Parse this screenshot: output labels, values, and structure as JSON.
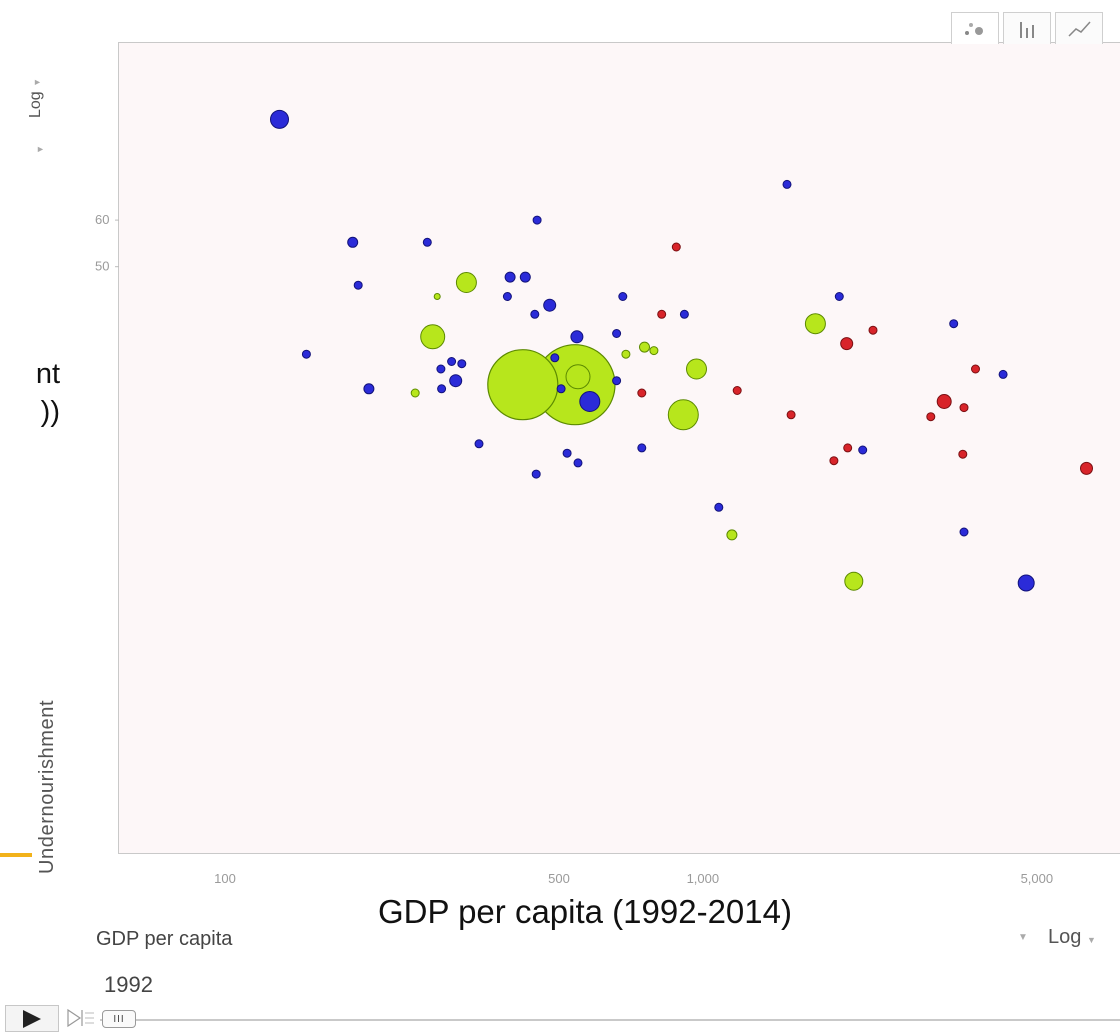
{
  "chart_data": {
    "type": "scatter",
    "title": "",
    "xlabel": "GDP per capita (1992-2014)",
    "x_axis_selector": "GDP per capita",
    "x_scale": "Log",
    "ylabel": "Undernourishment",
    "y_scale": "Log",
    "year": "1992",
    "xlim": [
      60,
      7500
    ],
    "ylim": [
      5,
      120
    ],
    "x_ticks": [
      {
        "value": 100,
        "label": "100"
      },
      {
        "value": 500,
        "label": "500"
      },
      {
        "value": 1000,
        "label": "1,000"
      },
      {
        "value": 5000,
        "label": "5,000"
      }
    ],
    "y_ticks": [
      {
        "value": 60,
        "label": "60"
      },
      {
        "value": 50,
        "label": "50"
      }
    ],
    "grid": false,
    "legend": "none",
    "colors": {
      "blue": "#2b2bd8",
      "green": "#b7e61c",
      "red": "#d8242a"
    },
    "points": [
      {
        "x": 130,
        "y": 89,
        "r": 9,
        "color": "blue"
      },
      {
        "x": 1500,
        "y": 69,
        "r": 4,
        "color": "blue"
      },
      {
        "x": 450,
        "y": 60,
        "r": 4,
        "color": "blue"
      },
      {
        "x": 185,
        "y": 55,
        "r": 5,
        "color": "blue"
      },
      {
        "x": 265,
        "y": 55,
        "r": 4,
        "color": "blue"
      },
      {
        "x": 880,
        "y": 54,
        "r": 4,
        "color": "red"
      },
      {
        "x": 395,
        "y": 48,
        "r": 5,
        "color": "blue"
      },
      {
        "x": 425,
        "y": 48,
        "r": 5,
        "color": "blue"
      },
      {
        "x": 320,
        "y": 47,
        "r": 10,
        "color": "green"
      },
      {
        "x": 190,
        "y": 46.5,
        "r": 4,
        "color": "blue"
      },
      {
        "x": 278,
        "y": 44.5,
        "r": 3,
        "color": "green"
      },
      {
        "x": 390,
        "y": 44.5,
        "r": 4,
        "color": "blue"
      },
      {
        "x": 680,
        "y": 44.5,
        "r": 4,
        "color": "blue"
      },
      {
        "x": 1930,
        "y": 44.5,
        "r": 4,
        "color": "blue"
      },
      {
        "x": 478,
        "y": 43,
        "r": 6,
        "color": "blue"
      },
      {
        "x": 445,
        "y": 41.5,
        "r": 4,
        "color": "blue"
      },
      {
        "x": 820,
        "y": 41.5,
        "r": 4,
        "color": "red"
      },
      {
        "x": 915,
        "y": 41.5,
        "r": 4,
        "color": "blue"
      },
      {
        "x": 1720,
        "y": 40,
        "r": 10,
        "color": "green"
      },
      {
        "x": 3350,
        "y": 40,
        "r": 4,
        "color": "blue"
      },
      {
        "x": 2270,
        "y": 39,
        "r": 4,
        "color": "red"
      },
      {
        "x": 660,
        "y": 38.5,
        "r": 4,
        "color": "blue"
      },
      {
        "x": 272,
        "y": 38,
        "r": 12,
        "color": "green"
      },
      {
        "x": 545,
        "y": 38,
        "r": 6,
        "color": "blue"
      },
      {
        "x": 2000,
        "y": 37,
        "r": 6,
        "color": "red"
      },
      {
        "x": 755,
        "y": 36.5,
        "r": 5,
        "color": "green"
      },
      {
        "x": 790,
        "y": 36,
        "r": 4,
        "color": "green"
      },
      {
        "x": 690,
        "y": 35.5,
        "r": 4,
        "color": "green"
      },
      {
        "x": 148,
        "y": 35.5,
        "r": 4,
        "color": "blue"
      },
      {
        "x": 490,
        "y": 35,
        "r": 4,
        "color": "blue"
      },
      {
        "x": 298,
        "y": 34.5,
        "r": 4,
        "color": "blue"
      },
      {
        "x": 313,
        "y": 34.2,
        "r": 4,
        "color": "blue"
      },
      {
        "x": 970,
        "y": 33.5,
        "r": 10,
        "color": "green"
      },
      {
        "x": 3720,
        "y": 33.5,
        "r": 4,
        "color": "red"
      },
      {
        "x": 283,
        "y": 33.5,
        "r": 4,
        "color": "blue"
      },
      {
        "x": 4250,
        "y": 32.8,
        "r": 4,
        "color": "blue"
      },
      {
        "x": 548,
        "y": 32.5,
        "r": 12,
        "color": "green"
      },
      {
        "x": 420,
        "y": 31.5,
        "r": 35,
        "color": "green"
      },
      {
        "x": 540,
        "y": 31.5,
        "r": 40,
        "color": "green"
      },
      {
        "x": 660,
        "y": 32,
        "r": 4,
        "color": "blue"
      },
      {
        "x": 304,
        "y": 32,
        "r": 6,
        "color": "blue"
      },
      {
        "x": 200,
        "y": 31,
        "r": 5,
        "color": "blue"
      },
      {
        "x": 284,
        "y": 31,
        "r": 4,
        "color": "blue"
      },
      {
        "x": 250,
        "y": 30.5,
        "r": 4,
        "color": "green"
      },
      {
        "x": 505,
        "y": 31,
        "r": 4,
        "color": "blue"
      },
      {
        "x": 745,
        "y": 30.5,
        "r": 4,
        "color": "red"
      },
      {
        "x": 1180,
        "y": 30.8,
        "r": 4,
        "color": "red"
      },
      {
        "x": 3200,
        "y": 29.5,
        "r": 7,
        "color": "red"
      },
      {
        "x": 3520,
        "y": 28.8,
        "r": 4,
        "color": "red"
      },
      {
        "x": 580,
        "y": 29.5,
        "r": 10,
        "color": "blue"
      },
      {
        "x": 910,
        "y": 28,
        "r": 15,
        "color": "green"
      },
      {
        "x": 1530,
        "y": 28,
        "r": 4,
        "color": "red"
      },
      {
        "x": 3000,
        "y": 27.8,
        "r": 4,
        "color": "red"
      },
      {
        "x": 340,
        "y": 25,
        "r": 4,
        "color": "blue"
      },
      {
        "x": 2010,
        "y": 24.6,
        "r": 4,
        "color": "red"
      },
      {
        "x": 2160,
        "y": 24.4,
        "r": 4,
        "color": "blue"
      },
      {
        "x": 745,
        "y": 24.6,
        "r": 4,
        "color": "blue"
      },
      {
        "x": 520,
        "y": 24.1,
        "r": 4,
        "color": "blue"
      },
      {
        "x": 3500,
        "y": 24,
        "r": 4,
        "color": "red"
      },
      {
        "x": 1880,
        "y": 23.4,
        "r": 4,
        "color": "red"
      },
      {
        "x": 548,
        "y": 23.2,
        "r": 4,
        "color": "blue"
      },
      {
        "x": 6350,
        "y": 22.7,
        "r": 6,
        "color": "red"
      },
      {
        "x": 448,
        "y": 22.2,
        "r": 4,
        "color": "blue"
      },
      {
        "x": 1080,
        "y": 19.5,
        "r": 4,
        "color": "blue"
      },
      {
        "x": 1150,
        "y": 17.5,
        "r": 5,
        "color": "green"
      },
      {
        "x": 3520,
        "y": 17.7,
        "r": 4,
        "color": "blue"
      },
      {
        "x": 2070,
        "y": 14.6,
        "r": 9,
        "color": "green"
      },
      {
        "x": 4750,
        "y": 14.5,
        "r": 8,
        "color": "blue"
      }
    ]
  },
  "partial_labels": {
    "line1": "nt",
    "line2": "))"
  },
  "controls": {
    "thumb_glyph": "III"
  },
  "icons": {
    "play": "play-icon",
    "step": "step-forward-icon",
    "bubble": "bubble-chart-icon",
    "bar": "bar-chart-icon",
    "line": "line-chart-icon"
  }
}
